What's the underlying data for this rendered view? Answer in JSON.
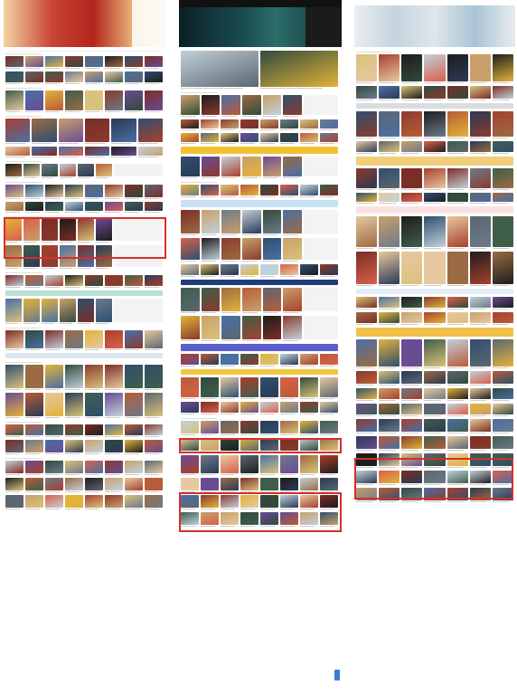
{
  "colors": {
    "accent": "#d4302b",
    "c1_hero": "#b83a2a",
    "c2_hero": "#143a3c",
    "c3_hero": "#9cbfcf",
    "c2_green": "#3bb54a"
  },
  "columns": [
    {
      "id": "c1",
      "logo": "",
      "sections": [
        "",
        "",
        "",
        "",
        "",
        ""
      ],
      "highlight_label": ""
    },
    {
      "id": "c2",
      "logo": "",
      "sections": [
        "",
        "",
        "",
        "",
        ""
      ],
      "highlight_label": ""
    },
    {
      "id": "c3",
      "logo": "",
      "sections": [
        "",
        "",
        "",
        ""
      ],
      "highlight_label": ""
    }
  ],
  "icons": {
    "c1_nav": "play-icon",
    "c2_nav": "search-icon",
    "c3_nav": "menu-icon",
    "scroll_top": "arrow-up-icon"
  },
  "hero_caption": {
    "c2": ""
  }
}
